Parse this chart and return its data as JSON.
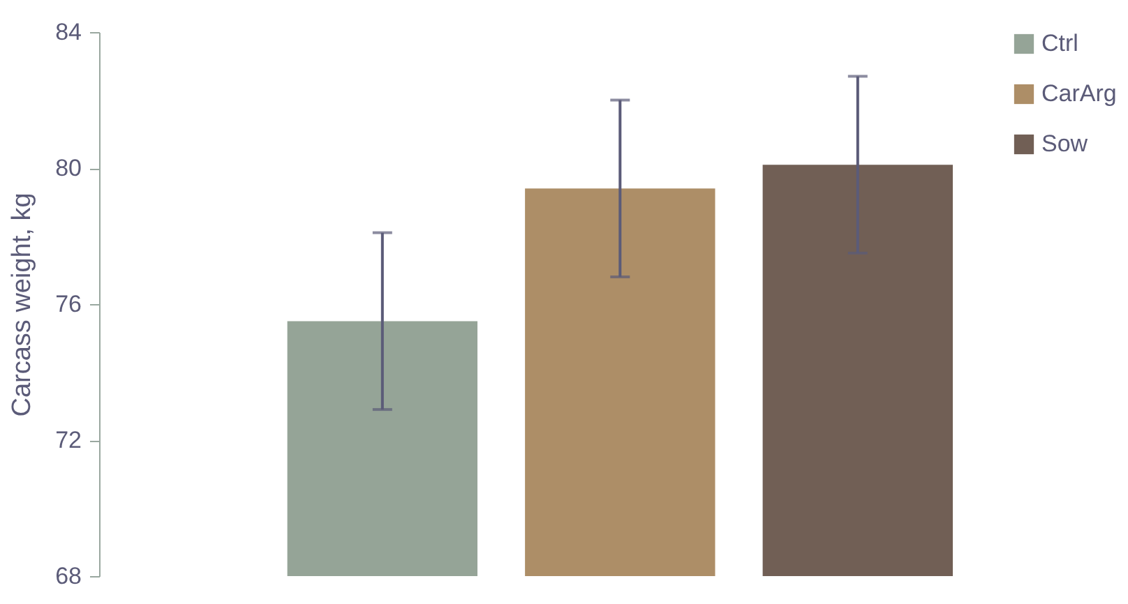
{
  "chart_data": {
    "type": "bar",
    "ylabel": "Carcass weight, kg",
    "categories": [
      null
    ],
    "series": [
      {
        "name": "Ctrl",
        "color": "#95a497",
        "values": [
          75.5
        ],
        "errors": [
          2.6
        ]
      },
      {
        "name": "CarArg",
        "color": "#ad8e67",
        "values": [
          79.4
        ],
        "errors": [
          2.6
        ]
      },
      {
        "name": "Sow",
        "color": "#715f55",
        "values": [
          80.1
        ],
        "errors": [
          2.6
        ]
      }
    ],
    "ylim": [
      68,
      84
    ],
    "yticks": [
      68,
      72,
      76,
      80,
      84
    ],
    "grid": false,
    "legend": "right",
    "tick_labels": "y"
  }
}
